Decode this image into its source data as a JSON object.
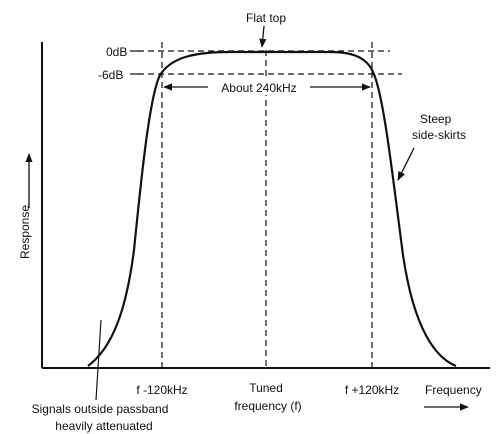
{
  "labels": {
    "flat_top": "Flat top",
    "zero_db": "0dB",
    "minus_six_db": "-6dB",
    "bandwidth": "About 240kHz",
    "steep_line1": "Steep",
    "steep_line2": "side-skirts",
    "response": "Response",
    "f_minus": "f -120kHz",
    "tuned_line1": "Tuned",
    "tuned_line2": "frequency (f)",
    "f_plus": "f +120kHz",
    "frequency": "Frequency",
    "signals_line1": "Signals outside passband",
    "signals_line2": "heavily attenuated"
  }
}
